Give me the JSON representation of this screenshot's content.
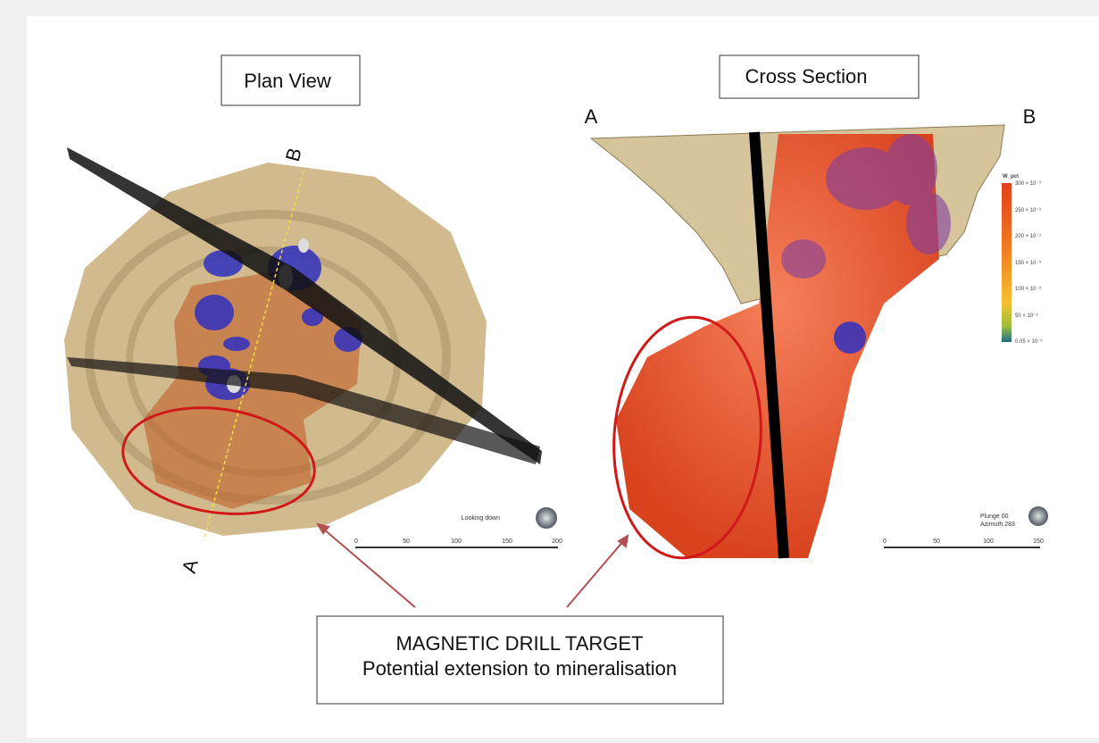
{
  "plan_view": {
    "title": "Plan View",
    "label_a": "A",
    "label_b": "B",
    "orientation": "Looking down",
    "scale": [
      0,
      50,
      100,
      150,
      200
    ]
  },
  "cross_section": {
    "title": "Cross Section",
    "label_a": "A",
    "label_b": "B",
    "orientation": [
      "Plunge 00",
      "Azimuth 283"
    ],
    "legend": {
      "title": "W_pct",
      "labels": [
        "300 × 10⁻³",
        "250 × 10⁻³",
        "200 × 10⁻³",
        "150 × 10⁻³",
        "100 × 10⁻³",
        "50 × 10⁻³",
        "0.05 × 10⁻³"
      ]
    },
    "scale": [
      0,
      50,
      100,
      150
    ]
  },
  "callout": {
    "lines": [
      "MAGNETIC DRILL TARGET",
      "Potential extension to mineralisation"
    ]
  }
}
